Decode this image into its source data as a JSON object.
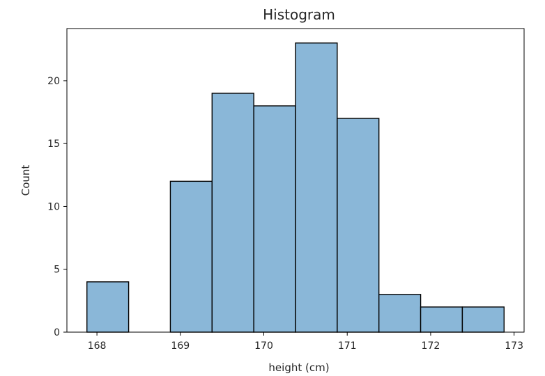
{
  "chart_data": {
    "type": "bar",
    "title": "Histogram",
    "xlabel": "height (cm)",
    "ylabel": "Count",
    "bins": [
      {
        "start": 167.88,
        "end": 168.38,
        "count": 4
      },
      {
        "start": 168.38,
        "end": 168.88,
        "count": 0
      },
      {
        "start": 168.88,
        "end": 169.38,
        "count": 12
      },
      {
        "start": 169.38,
        "end": 169.88,
        "count": 19
      },
      {
        "start": 169.88,
        "end": 170.38,
        "count": 18
      },
      {
        "start": 170.38,
        "end": 170.88,
        "count": 23
      },
      {
        "start": 170.88,
        "end": 171.38,
        "count": 17
      },
      {
        "start": 171.38,
        "end": 171.88,
        "count": 3
      },
      {
        "start": 171.88,
        "end": 172.38,
        "count": 2
      },
      {
        "start": 172.38,
        "end": 172.88,
        "count": 2
      }
    ],
    "xlim": [
      167.64,
      173.12
    ],
    "ylim": [
      0,
      24.15
    ],
    "xticks": [
      168,
      169,
      170,
      171,
      172,
      173
    ],
    "yticks": [
      0,
      5,
      10,
      15,
      20
    ],
    "grid": false,
    "bar_color": "#8ab7d8",
    "edge_color": "#000000"
  }
}
